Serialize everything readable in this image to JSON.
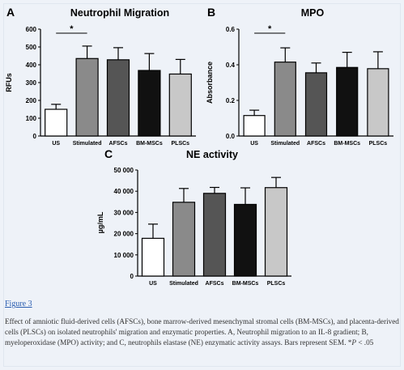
{
  "chart_data": [
    {
      "panel": "A",
      "type": "bar",
      "title": "Neutrophil Migration",
      "ylabel": "RFUs",
      "xlabel": "",
      "categories": [
        "US",
        "Stimulated",
        "AFSCs",
        "BM-MSCs",
        "PLSCs"
      ],
      "values": [
        150,
        435,
        428,
        368,
        348
      ],
      "errors": [
        28,
        70,
        68,
        95,
        82
      ],
      "colors": [
        "#ffffff",
        "#8a8a8a",
        "#555555",
        "#111111",
        "#c8c8c8"
      ],
      "ylim": [
        0,
        600
      ],
      "yticks": [
        "0",
        "100",
        "200",
        "300",
        "400",
        "500",
        "600"
      ],
      "significance": {
        "pair": [
          0,
          1
        ],
        "label": "*"
      }
    },
    {
      "panel": "B",
      "type": "bar",
      "title": "MPO",
      "ylabel": "Absorbance",
      "xlabel": "",
      "categories": [
        "US",
        "Stimulated",
        "AFSCs",
        "BM-MSCs",
        "PLSCs"
      ],
      "values": [
        0.115,
        0.415,
        0.355,
        0.385,
        0.378
      ],
      "errors": [
        0.03,
        0.08,
        0.055,
        0.085,
        0.095
      ],
      "colors": [
        "#ffffff",
        "#8a8a8a",
        "#555555",
        "#111111",
        "#c8c8c8"
      ],
      "ylim": [
        0,
        0.6
      ],
      "yticks": [
        "0.0",
        "0.2",
        "0.4",
        "0.6"
      ],
      "significance": {
        "pair": [
          0,
          1
        ],
        "label": "*"
      }
    },
    {
      "panel": "C",
      "type": "bar",
      "title": "NE activity",
      "ylabel": "µg/mL",
      "xlabel": "",
      "categories": [
        "US",
        "Stimulated",
        "AFSCs",
        "BM-MSCs",
        "PLSCs"
      ],
      "values": [
        17800,
        34800,
        39000,
        33800,
        41700
      ],
      "errors": [
        6700,
        6500,
        2800,
        7800,
        4800
      ],
      "colors": [
        "#ffffff",
        "#8a8a8a",
        "#555555",
        "#111111",
        "#c8c8c8"
      ],
      "ylim": [
        0,
        50000
      ],
      "yticks": [
        "0",
        "10 000",
        "20 000",
        "30 000",
        "40 000",
        "50 000"
      ],
      "significance": null
    }
  ],
  "figure_link": "Figure 3",
  "caption": {
    "text": "Effect of amniotic fluid-derived cells (AFSCs), bone marrow-derived mesenchymal stromal cells (BM-MSCs), and placenta-derived cells (PLSCs) on isolated neutrophils' migration and enzymatic properties. A, Neutrophil migration to an IL-8 gradient; B, myeloperoxidase (MPO) activity; and C, neutrophils elastase (NE) enzymatic activity assays. Bars represent SEM. *",
    "p_label": "P",
    "p_value": " < .05"
  }
}
